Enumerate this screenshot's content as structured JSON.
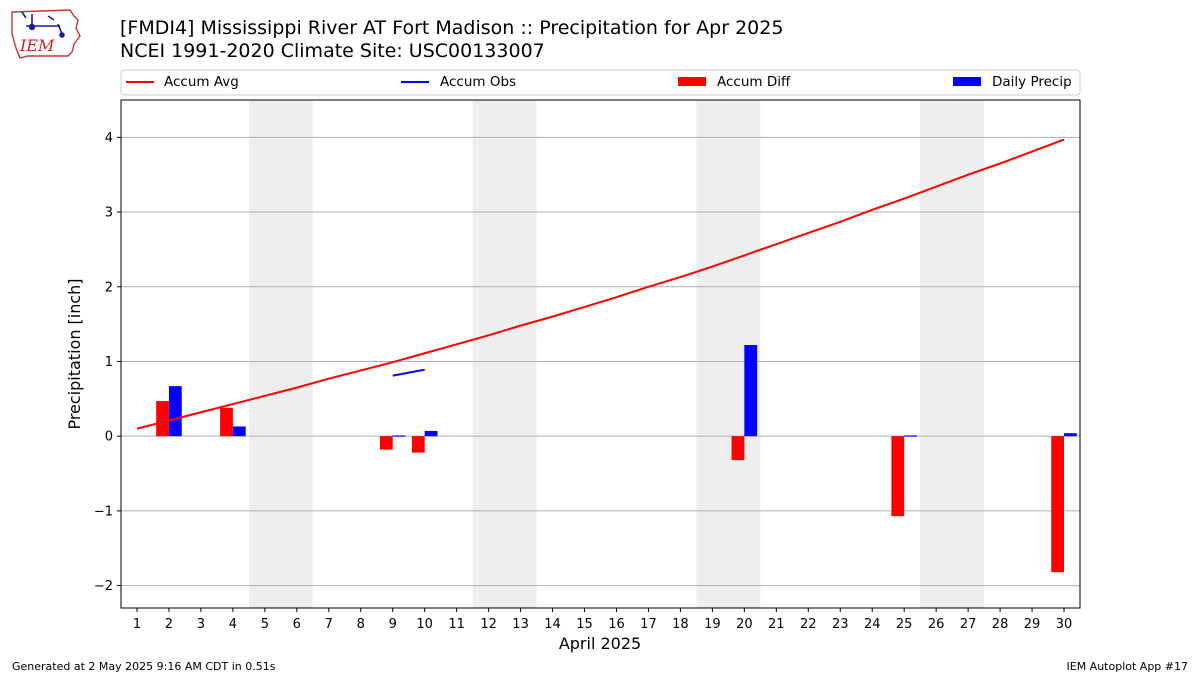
{
  "header": {
    "title_line1": "[FMDI4] Mississippi River  AT Fort Madison :: Precipitation for Apr 2025",
    "title_line2": "NCEI 1991-2020 Climate Site: USC00133007"
  },
  "logo": {
    "text": "IEM"
  },
  "footer": {
    "left": "Generated at 2 May 2025 9:16 AM CDT in 0.51s",
    "right": "IEM Autoplot App #17"
  },
  "colors": {
    "accum_avg": "#ff0000",
    "accum_obs": "#0000ff",
    "accum_diff": "#ff0000",
    "daily_precip": "#0000ff",
    "weekend_band": "#eeeeee",
    "grid": "#b0b0b0"
  },
  "chart_data": {
    "type": "bar",
    "xlabel": "April 2025",
    "ylabel": "Precipitation [inch]",
    "ylim": [
      -2.3,
      4.5
    ],
    "xlim": [
      0.5,
      30.5
    ],
    "yticks": [
      -2,
      -1,
      0,
      1,
      2,
      3,
      4
    ],
    "ytick_labels": [
      "−2",
      "−1",
      "0",
      "1",
      "2",
      "3",
      "4"
    ],
    "grid": true,
    "legend": {
      "placement": "top",
      "entries": [
        "Accum Avg",
        "Accum Obs",
        "Accum Diff",
        "Daily Precip"
      ]
    },
    "days": [
      1,
      2,
      3,
      4,
      5,
      6,
      7,
      8,
      9,
      10,
      11,
      12,
      13,
      14,
      15,
      16,
      17,
      18,
      19,
      20,
      21,
      22,
      23,
      24,
      25,
      26,
      27,
      28,
      29,
      30
    ],
    "weekend_bands": [
      [
        5,
        6
      ],
      [
        12,
        13
      ],
      [
        19,
        20
      ],
      [
        26,
        27
      ]
    ],
    "accum_avg": [
      0.1,
      0.21,
      0.32,
      0.43,
      0.54,
      0.65,
      0.77,
      0.88,
      0.99,
      1.11,
      1.23,
      1.35,
      1.48,
      1.6,
      1.73,
      1.86,
      2.0,
      2.13,
      2.27,
      2.42,
      2.57,
      2.72,
      2.87,
      3.03,
      3.18,
      3.34,
      3.5,
      3.65,
      3.81,
      3.97
    ],
    "accum_obs_segment": {
      "x": [
        9,
        10
      ],
      "y": [
        0.81,
        0.89
      ]
    },
    "accum_diff": [
      {
        "day": 2,
        "value": 0.47
      },
      {
        "day": 4,
        "value": 0.38
      },
      {
        "day": 9,
        "value": -0.18
      },
      {
        "day": 10,
        "value": -0.22
      },
      {
        "day": 20,
        "value": -0.32
      },
      {
        "day": 25,
        "value": -1.07
      },
      {
        "day": 30,
        "value": -1.82
      }
    ],
    "daily_precip": [
      {
        "day": 2,
        "value": 0.67
      },
      {
        "day": 4,
        "value": 0.13
      },
      {
        "day": 9,
        "value": 0.01
      },
      {
        "day": 10,
        "value": 0.07
      },
      {
        "day": 20,
        "value": 1.22
      },
      {
        "day": 25,
        "value": 0.01
      },
      {
        "day": 30,
        "value": 0.04
      }
    ]
  }
}
